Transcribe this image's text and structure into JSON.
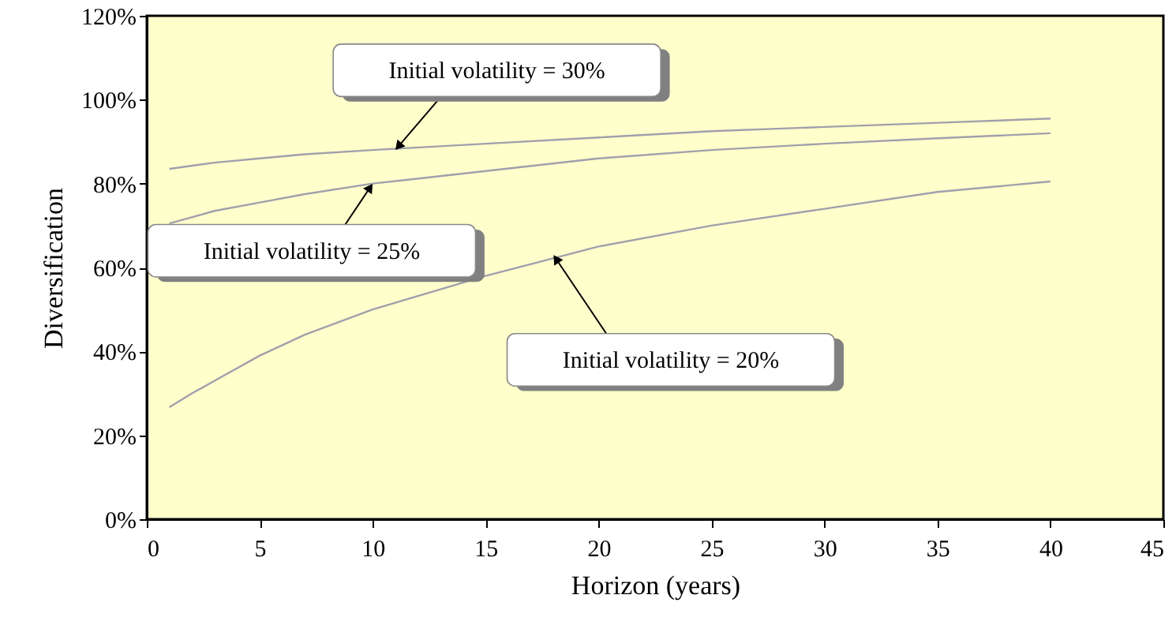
{
  "chart_data": {
    "type": "line",
    "xlabel": "Horizon (years)",
    "ylabel": "Diversification",
    "xlim": [
      0,
      45
    ],
    "xticks": [
      0,
      5,
      10,
      15,
      20,
      25,
      30,
      35,
      40,
      45
    ],
    "ylim": [
      0,
      120
    ],
    "yticks": [
      {
        "value": 0,
        "label": "0%"
      },
      {
        "value": 20,
        "label": "20%"
      },
      {
        "value": 40,
        "label": "40%"
      },
      {
        "value": 60,
        "label": "60%"
      },
      {
        "value": 80,
        "label": "80%"
      },
      {
        "value": 100,
        "label": "100%"
      },
      {
        "value": 120,
        "label": "120%"
      }
    ],
    "grid": false,
    "marker": "none",
    "line_style": "solid",
    "series": [
      {
        "color": "#a0a0ac",
        "x": [
          1,
          3,
          5,
          7,
          10,
          15,
          20,
          25,
          30,
          35,
          40
        ],
        "values": [
          83.5,
          85,
          86,
          87,
          88,
          89.5,
          91,
          92.5,
          93.5,
          94.5,
          95.5
        ]
      },
      {
        "color": "#a0a0ac",
        "x": [
          1,
          3,
          5,
          7,
          10,
          15,
          20,
          25,
          30,
          35,
          40
        ],
        "values": [
          70.5,
          73.5,
          75.5,
          77.5,
          80,
          83,
          86,
          88,
          89.5,
          90.8,
          92
        ]
      },
      {
        "color": "#a0a0ac",
        "x": [
          1,
          2,
          3,
          5,
          7,
          10,
          15,
          20,
          25,
          30,
          35,
          40
        ],
        "values": [
          26.7,
          30,
          33,
          39,
          44,
          50,
          58,
          65,
          70,
          74,
          78,
          80.5
        ]
      }
    ],
    "annotations": [
      {
        "text": "Initial volatility = 30%",
        "x": 11,
        "y": 88
      },
      {
        "text": "Initial volatility = 25%",
        "x": 10,
        "y": 80
      },
      {
        "text": "Initial volatility = 20%",
        "x": 18,
        "y": 63
      }
    ]
  }
}
